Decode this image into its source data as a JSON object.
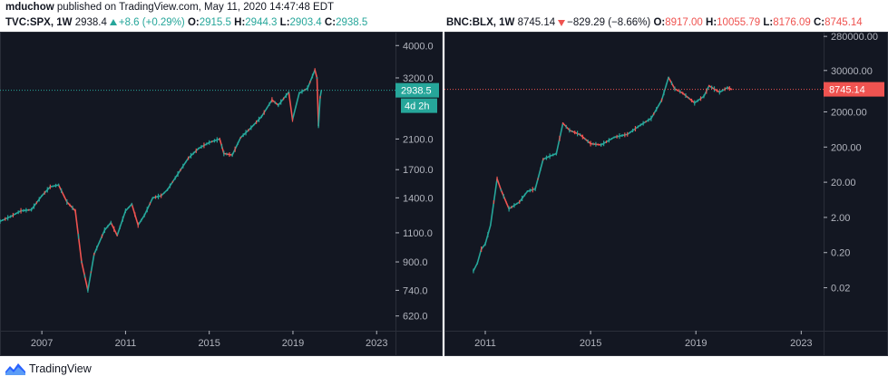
{
  "publish": {
    "user": "mduchow",
    "text": "published on TradingView.com, May 11, 2020 14:47:48 EDT"
  },
  "left_header": {
    "symbol": "TVC:SPX, 1W",
    "price": "2938.4",
    "change": "+8.6 (+0.29%)",
    "o_label": "O:",
    "o": "2915.5",
    "h_label": "H:",
    "h": "2944.3",
    "l_label": "L:",
    "l": "2903.4",
    "c_label": "C:",
    "c": "2938.5"
  },
  "right_header": {
    "symbol": "BNC:BLX, 1W",
    "price": "8745.14",
    "change": "−829.29 (−8.66%)",
    "o_label": "O:",
    "o": "8917.00",
    "h_label": "H:",
    "h": "10055.79",
    "l_label": "L:",
    "l": "8176.09",
    "c_label": "C:",
    "c": "8745.14"
  },
  "colors": {
    "background": "#131722",
    "up": "#26a69a",
    "down": "#ef5350",
    "axis_text": "#b2b5be",
    "grid_border": "#2a2e39"
  },
  "chart_data": [
    {
      "type": "line",
      "symbol": "TVC:SPX, 1W",
      "scale": "log",
      "y_ticks": [
        "4000.0",
        "3200.0",
        "2100.0",
        "1700.0",
        "1400.0",
        "1100.0",
        "900.0",
        "740.0",
        "620.0"
      ],
      "x_ticks": [
        "2007",
        "2011",
        "2015",
        "2019",
        "2023"
      ],
      "last_price_label": "2938.5",
      "countdown_label": "4d 2h",
      "series": [
        {
          "x": [
            2005.0,
            2005.5,
            2006.0,
            2006.5,
            2007.0,
            2007.4,
            2007.8,
            2008.2,
            2008.6,
            2008.9,
            2009.2,
            2009.5,
            2010.0,
            2010.3,
            2010.6,
            2011.0,
            2011.3,
            2011.6,
            2011.9,
            2012.3,
            2012.7,
            2013.0,
            2013.5,
            2014.0,
            2014.5,
            2015.0,
            2015.5,
            2015.7,
            2016.1,
            2016.5,
            2017.0,
            2017.5,
            2018.0,
            2018.3,
            2018.8,
            2018.98,
            2019.3,
            2019.7,
            2020.05,
            2020.15,
            2020.22,
            2020.3,
            2020.36
          ],
          "y": [
            1190,
            1230,
            1280,
            1290,
            1420,
            1510,
            1530,
            1360,
            1280,
            900,
            740,
            950,
            1120,
            1180,
            1080,
            1280,
            1340,
            1160,
            1240,
            1400,
            1420,
            1480,
            1650,
            1840,
            1970,
            2050,
            2100,
            1900,
            1880,
            2120,
            2270,
            2450,
            2750,
            2650,
            2900,
            2400,
            2880,
            2980,
            3380,
            3200,
            2300,
            2800,
            2938
          ]
        }
      ]
    },
    {
      "type": "line",
      "symbol": "BNC:BLX, 1W",
      "scale": "log",
      "y_ticks": [
        "280000.00",
        "30000.00",
        "2000.00",
        "200.00",
        "20.00",
        "2.00",
        "0.20",
        "0.02"
      ],
      "x_ticks": [
        "2011",
        "2015",
        "2019",
        "2023"
      ],
      "last_price_label": "8745.14",
      "series": [
        {
          "x": [
            2010.55,
            2010.7,
            2010.85,
            2011.0,
            2011.2,
            2011.45,
            2011.6,
            2011.9,
            2012.3,
            2012.6,
            2012.9,
            2013.2,
            2013.45,
            2013.7,
            2013.95,
            2014.2,
            2014.6,
            2015.0,
            2015.4,
            2015.9,
            2016.4,
            2016.9,
            2017.3,
            2017.7,
            2017.96,
            2018.2,
            2018.5,
            2018.95,
            2019.3,
            2019.5,
            2019.9,
            2020.2,
            2020.36
          ],
          "y": [
            0.06,
            0.1,
            0.25,
            0.35,
            1.2,
            25,
            12,
            3.5,
            5.5,
            11,
            13,
            90,
            110,
            130,
            950,
            600,
            450,
            250,
            230,
            380,
            460,
            850,
            1300,
            4300,
            19000,
            9000,
            6800,
            3600,
            5500,
            11000,
            7200,
            9800,
            8745
          ]
        }
      ]
    }
  ],
  "footer": {
    "brand": "TradingView"
  }
}
